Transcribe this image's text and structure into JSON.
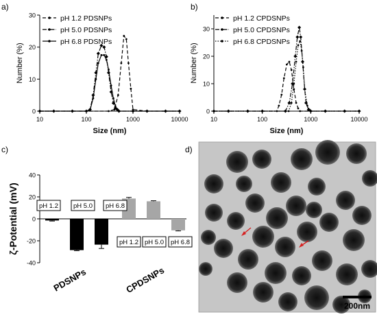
{
  "panel_labels": [
    "a)",
    "b)",
    "c)",
    "d)"
  ],
  "tem": {
    "scale_label": "200nm",
    "arrow_color": "#d62020"
  },
  "chart_data": [
    {
      "id": "a",
      "type": "line",
      "xlabel": "Size (nm)",
      "ylabel": "Number (%)",
      "xscale": "log",
      "xlim": [
        10,
        10000
      ],
      "ylim": [
        0,
        30
      ],
      "xticks": [
        10,
        100,
        1000,
        10000
      ],
      "yticks": [
        0,
        10,
        20,
        30
      ],
      "legend_position": "top-left",
      "series": [
        {
          "name": "pH 1.2 PDSNPs",
          "style": "dashed",
          "x": [
            10,
            20,
            50,
            100,
            300,
            400,
            480,
            560,
            640,
            720,
            800,
            900,
            1000,
            2000,
            5000,
            10000
          ],
          "values": [
            0,
            0,
            0,
            0,
            0,
            0.5,
            5,
            15,
            23.5,
            22.5,
            15,
            7,
            0.5,
            0,
            0,
            0
          ]
        },
        {
          "name": "pH 5.0 PDSNPs",
          "style": "dash-dot",
          "x": [
            10,
            20,
            50,
            100,
            120,
            140,
            160,
            180,
            210,
            240,
            270,
            300,
            340,
            380,
            420,
            460,
            500,
            1000,
            2000,
            5000,
            10000
          ],
          "values": [
            0,
            0,
            0,
            0,
            0.5,
            5,
            12,
            18,
            20.5,
            20,
            17,
            12,
            6,
            2.5,
            1,
            0.5,
            0,
            0,
            0,
            0,
            0
          ]
        },
        {
          "name": "pH 6.8 PDSNPs",
          "style": "solid",
          "x": [
            10,
            20,
            50,
            100,
            120,
            140,
            160,
            180,
            210,
            240,
            270,
            300,
            340,
            380,
            420,
            460,
            500,
            1000,
            2000,
            5000,
            10000
          ],
          "values": [
            0,
            0,
            0,
            0,
            0.3,
            4,
            10,
            15,
            17.5,
            17.5,
            16,
            13,
            8,
            4,
            1.5,
            0.5,
            0,
            0,
            0,
            0,
            0
          ]
        }
      ]
    },
    {
      "id": "b",
      "type": "line",
      "xlabel": "Size (nm)",
      "ylabel": "Number (%)",
      "xscale": "log",
      "xlim": [
        10,
        10000
      ],
      "ylim": [
        0,
        35
      ],
      "xticks": [
        10,
        100,
        1000,
        10000
      ],
      "yticks": [
        0,
        10,
        20,
        30
      ],
      "legend_position": "top-left",
      "series": [
        {
          "name": "pH 1.2 CPDSNPs",
          "style": "dashed",
          "x": [
            10,
            20,
            50,
            100,
            200,
            220,
            250,
            280,
            320,
            360,
            400,
            450,
            500,
            550,
            600,
            1000,
            2000,
            5000,
            10000
          ],
          "values": [
            0,
            0,
            0,
            0,
            0,
            2,
            6,
            12,
            17,
            18,
            15,
            8,
            3,
            1,
            0,
            0,
            0,
            0,
            0
          ]
        },
        {
          "name": "pH 5.0 CPDSNPs",
          "style": "dash-dot",
          "x": [
            10,
            20,
            50,
            100,
            300,
            360,
            420,
            480,
            530,
            580,
            620,
            680,
            750,
            800,
            900,
            1000,
            2000,
            5000,
            10000
          ],
          "values": [
            0,
            0,
            0,
            0,
            0,
            3,
            10,
            20,
            27,
            30.5,
            27,
            18,
            8,
            3,
            0.5,
            0,
            0,
            0,
            0
          ]
        },
        {
          "name": "pH 6.8 CPDSNPs",
          "style": "dotted",
          "x": [
            10,
            20,
            50,
            100,
            350,
            400,
            450,
            500,
            550,
            600,
            650,
            700,
            750,
            850,
            950,
            1000,
            2000,
            5000,
            10000
          ],
          "values": [
            0,
            0,
            0,
            0,
            0,
            3,
            10,
            18,
            24,
            25.5,
            22,
            16,
            8,
            2,
            0.5,
            0,
            0,
            0,
            0
          ]
        }
      ]
    },
    {
      "id": "c",
      "type": "bar",
      "ylabel": "ζ-Potential (mV)",
      "ylim": [
        -40,
        40
      ],
      "yticks": [
        -40,
        -20,
        0,
        20,
        40
      ],
      "groups": [
        "PDSNPs",
        "CPDSNPs"
      ],
      "categories": [
        "pH 1.2",
        "pH 5.0",
        "pH 6.8"
      ],
      "series": [
        {
          "group": "PDSNPs",
          "color": "#000000",
          "values": [
            -1.5,
            -28.5,
            -23.5
          ],
          "errors": [
            0.5,
            0.5,
            3.5
          ]
        },
        {
          "group": "CPDSNPs",
          "color": "#a6a6a6",
          "values": [
            18.5,
            16.0,
            -10.5
          ],
          "errors": [
            1.0,
            0.5,
            0.5
          ]
        }
      ]
    }
  ]
}
